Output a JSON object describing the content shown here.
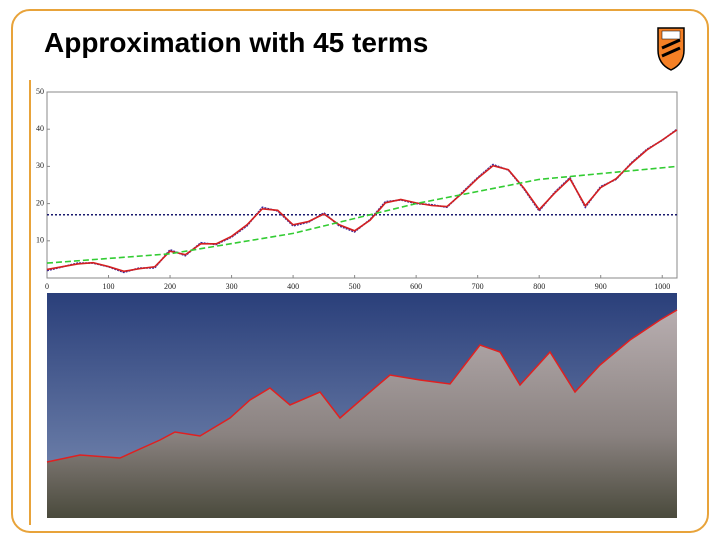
{
  "chart_data": {
    "type": "line",
    "title": "Approximation with 45 terms",
    "x": [
      0,
      50,
      75,
      100,
      125,
      150,
      175,
      200,
      225,
      250,
      275,
      300,
      325,
      350,
      375,
      400,
      425,
      450,
      475,
      500,
      525,
      550,
      575,
      600,
      625,
      650,
      675,
      700,
      725,
      750,
      775,
      800,
      825,
      850,
      875,
      900,
      925,
      950,
      975,
      1000,
      1024
    ],
    "series": [
      {
        "color": "#3a2a9a",
        "dash": "2,1",
        "values": [
          2,
          4,
          4,
          3,
          1.5,
          2.7,
          2.7,
          7.6,
          6,
          9.5,
          9,
          11,
          14,
          19,
          18,
          14,
          15,
          17.5,
          14,
          12.4,
          15.7,
          20.5,
          21,
          20,
          19.7,
          19,
          23,
          27,
          30.5,
          29,
          24,
          18,
          23,
          27,
          19,
          24.6,
          26.5,
          31,
          34.6,
          37,
          40
        ]
      },
      {
        "color": "#d42020",
        "values": [
          2.3,
          3.8,
          4.1,
          3.1,
          1.8,
          2.5,
          3,
          7.2,
          6.3,
          9.2,
          9.2,
          11.2,
          14.3,
          18.6,
          18.2,
          14.3,
          15.2,
          17.2,
          14.3,
          12.7,
          15.5,
          20.2,
          21.1,
          20.2,
          19.5,
          19.2,
          22.8,
          26.8,
          30.2,
          29.1,
          24.2,
          18.4,
          22.8,
          26.7,
          19.4,
          24.3,
          26.7,
          30.8,
          34.4,
          37.1,
          39.8
        ]
      },
      {
        "color": "#33cc33",
        "dash": "6,3",
        "x": [
          0,
          200,
          400,
          600,
          800,
          1024
        ],
        "values": [
          4,
          6.5,
          12,
          20,
          26.5,
          30
        ]
      }
    ],
    "hline": {
      "value": 17,
      "color": "#1a1a6e"
    },
    "xlim": [
      0,
      1024
    ],
    "ylim": [
      0,
      50
    ],
    "xticks": [
      0,
      100,
      200,
      300,
      400,
      500,
      600,
      700,
      800,
      900,
      1000
    ],
    "yticks": [
      10,
      20,
      30,
      40,
      50
    ]
  }
}
